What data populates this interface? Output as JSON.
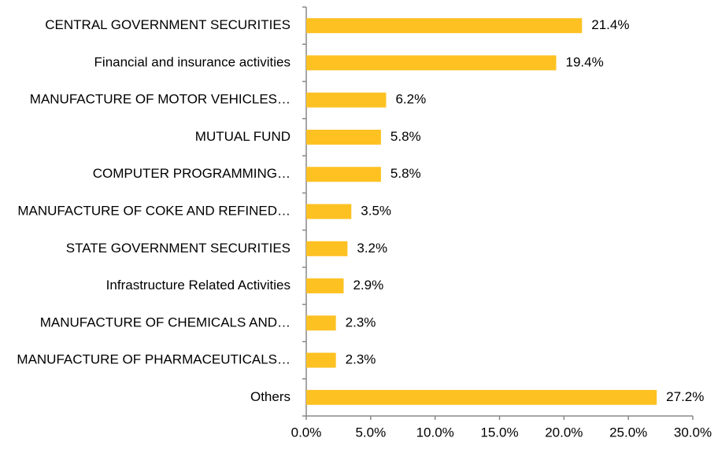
{
  "chart_data": {
    "type": "bar",
    "orientation": "horizontal",
    "categories": [
      "CENTRAL GOVERNMENT SECURITIES",
      "Financial and insurance activities",
      "MANUFACTURE OF MOTOR VEHICLES…",
      "MUTUAL FUND",
      "COMPUTER PROGRAMMING…",
      "MANUFACTURE OF COKE AND REFINED…",
      "STATE GOVERNMENT SECURITIES",
      "Infrastructure Related Activities",
      "MANUFACTURE OF CHEMICALS AND…",
      "MANUFACTURE OF PHARMACEUTICALS…",
      "Others"
    ],
    "values": [
      21.4,
      19.4,
      6.2,
      5.8,
      5.8,
      3.5,
      3.2,
      2.9,
      2.3,
      2.3,
      27.2
    ],
    "value_labels": [
      "21.4%",
      "19.4%",
      "6.2%",
      "5.8%",
      "5.8%",
      "3.5%",
      "3.2%",
      "2.9%",
      "2.3%",
      "2.3%",
      "27.2%"
    ],
    "color": "#fdc122",
    "xlim": [
      0,
      30
    ],
    "xticks": [
      {
        "value": 0,
        "label": "0.0%"
      },
      {
        "value": 5,
        "label": "5.0%"
      },
      {
        "value": 10,
        "label": "10.0%"
      },
      {
        "value": 15,
        "label": "15.0%"
      },
      {
        "value": 20,
        "label": "20.0%"
      },
      {
        "value": 25,
        "label": "25.0%"
      },
      {
        "value": 30,
        "label": "30.0%"
      }
    ],
    "grid": false
  }
}
